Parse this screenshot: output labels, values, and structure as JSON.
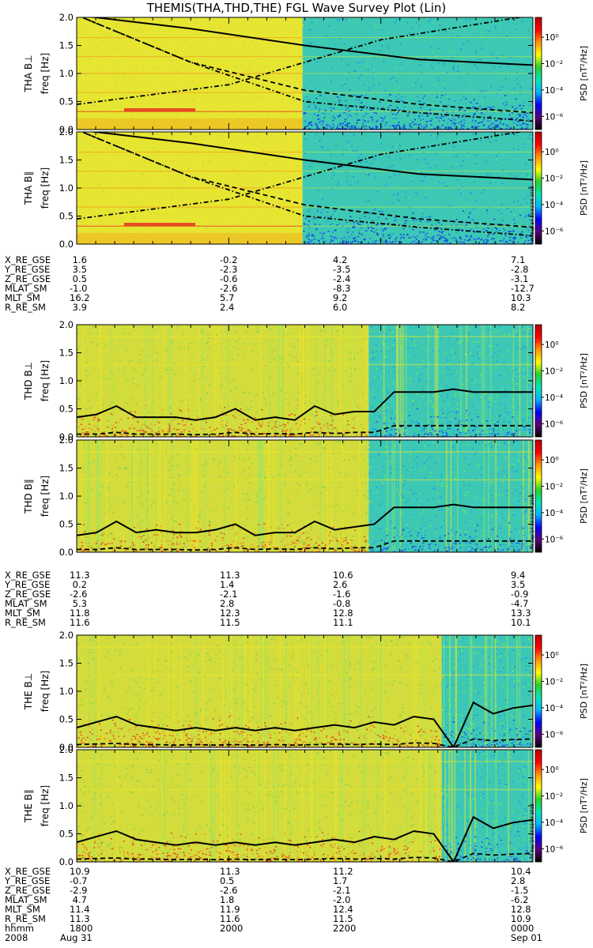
{
  "title": "THEMIS(THA,THD,THE) FGL Wave Survey Plot (Lin)",
  "colorbar": {
    "label": "PSD [nT²/Hz]",
    "ticks": [
      "10⁰",
      "10⁻²",
      "10⁻⁴",
      "10⁻⁶"
    ],
    "log_range": [
      -7,
      1.5
    ],
    "colors": [
      "#000000",
      "#5a007a",
      "#0000ff",
      "#00b4ff",
      "#00e6b4",
      "#28d228",
      "#ffff00",
      "#ff9600",
      "#ff0000",
      "#b40000"
    ]
  },
  "side_stamps": [
    "Fri Sep 14 13:52:55 2012",
    "Fri Sep 14 13:52:54 2012"
  ],
  "chart_data": [
    {
      "type": "heatmap",
      "id": "tha_bperp",
      "ylabel": "THA B⊥",
      "yunit": "freq [Hz]",
      "yticks": [
        "0.0",
        "0.5",
        "1.0",
        "1.5",
        "2.0"
      ],
      "ylim": [
        0,
        2.0
      ],
      "xlim": [
        "1700",
        "2300"
      ],
      "style": "quiet",
      "break_frac": 0.495,
      "overlay": [
        {
          "kind": "dashdot",
          "values": [
            0.45,
            0.8,
            1.6,
            2.3
          ]
        },
        {
          "kind": "dashdot",
          "values": [
            2.3,
            1.2,
            0.5,
            0.3,
            0.15
          ]
        },
        {
          "kind": "dashed",
          "values": [
            2.2,
            1.2,
            0.7,
            0.45,
            0.3
          ]
        },
        {
          "kind": "solid",
          "values": [
            2.2,
            1.8,
            1.5,
            1.25,
            1.15
          ]
        }
      ]
    },
    {
      "type": "heatmap",
      "id": "tha_bpar",
      "ylabel": "THA B∥",
      "yunit": "freq [Hz]",
      "yticks": [
        "0.0",
        "0.5",
        "1.0",
        "1.5",
        "2.0"
      ],
      "ylim": [
        0,
        2.0
      ],
      "xlim": [
        "1700",
        "2300"
      ],
      "style": "quiet",
      "break_frac": 0.495,
      "stamp": 0,
      "overlay": [
        {
          "kind": "dashdot",
          "values": [
            0.45,
            0.8,
            1.6,
            2.3
          ]
        },
        {
          "kind": "dashdot",
          "values": [
            2.3,
            1.2,
            0.5,
            0.3,
            0.15
          ]
        },
        {
          "kind": "dashed",
          "values": [
            2.2,
            1.2,
            0.7,
            0.45,
            0.3
          ]
        },
        {
          "kind": "solid",
          "values": [
            2.2,
            1.8,
            1.5,
            1.25,
            1.15
          ]
        }
      ]
    },
    {
      "type": "heatmap",
      "id": "thd_bperp",
      "ylabel": "THD B⊥",
      "yunit": "freq [Hz]",
      "yticks": [
        "0.0",
        "0.5",
        "1.0",
        "1.5",
        "2.0"
      ],
      "ylim": [
        0,
        2.0
      ],
      "xlim": [
        "1700",
        "2300"
      ],
      "style": "active",
      "break_frac": 0.64,
      "overlay": [
        {
          "kind": "solid",
          "values": [
            0.35,
            0.4,
            0.55,
            0.35,
            0.35,
            0.35,
            0.3,
            0.35,
            0.5,
            0.3,
            0.35,
            0.3,
            0.55,
            0.4,
            0.45,
            0.45,
            0.8,
            0.8,
            0.8,
            0.85,
            0.8,
            0.8,
            0.8,
            0.8
          ]
        },
        {
          "kind": "dashed",
          "values": [
            0.05,
            0.05,
            0.08,
            0.05,
            0.05,
            0.05,
            0.04,
            0.05,
            0.08,
            0.05,
            0.06,
            0.05,
            0.08,
            0.06,
            0.08,
            0.08,
            0.2,
            0.2,
            0.2,
            0.2,
            0.2,
            0.2,
            0.2,
            0.2
          ]
        }
      ]
    },
    {
      "type": "heatmap",
      "id": "thd_bpar",
      "ylabel": "THD B∥",
      "yunit": "freq [Hz]",
      "yticks": [
        "0.0",
        "0.5",
        "1.0",
        "1.5",
        "2.0"
      ],
      "ylim": [
        0,
        2.0
      ],
      "xlim": [
        "1700",
        "2300"
      ],
      "style": "active",
      "break_frac": 0.64,
      "stamp": 1,
      "overlay": [
        {
          "kind": "solid",
          "values": [
            0.3,
            0.35,
            0.55,
            0.35,
            0.4,
            0.35,
            0.35,
            0.4,
            0.5,
            0.3,
            0.35,
            0.35,
            0.55,
            0.4,
            0.45,
            0.5,
            0.8,
            0.8,
            0.8,
            0.85,
            0.8,
            0.8,
            0.8,
            0.8
          ]
        },
        {
          "kind": "dashed",
          "values": [
            0.05,
            0.05,
            0.08,
            0.05,
            0.05,
            0.05,
            0.04,
            0.05,
            0.08,
            0.05,
            0.06,
            0.05,
            0.08,
            0.06,
            0.08,
            0.08,
            0.2,
            0.2,
            0.2,
            0.2,
            0.2,
            0.2,
            0.2,
            0.2
          ]
        }
      ]
    },
    {
      "type": "heatmap",
      "id": "the_bperp",
      "ylabel": "THE B⊥",
      "yunit": "freq [Hz]",
      "yticks": [
        "0.0",
        "0.5",
        "1.0",
        "1.5",
        "2.0"
      ],
      "ylim": [
        0,
        2.0
      ],
      "xlim": [
        "1700",
        "2300"
      ],
      "style": "the",
      "break_frac": 0.8,
      "overlay": [
        {
          "kind": "solid",
          "values": [
            0.35,
            0.45,
            0.55,
            0.4,
            0.35,
            0.3,
            0.35,
            0.3,
            0.35,
            0.3,
            0.35,
            0.3,
            0.35,
            0.4,
            0.35,
            0.45,
            0.4,
            0.55,
            0.5,
            0.0,
            0.8,
            0.6,
            0.7,
            0.75
          ]
        },
        {
          "kind": "dashed",
          "values": [
            0.05,
            0.06,
            0.07,
            0.05,
            0.05,
            0.04,
            0.05,
            0.04,
            0.05,
            0.04,
            0.05,
            0.04,
            0.05,
            0.06,
            0.05,
            0.06,
            0.05,
            0.08,
            0.07,
            0.0,
            0.15,
            0.12,
            0.14,
            0.15
          ]
        }
      ]
    },
    {
      "type": "heatmap",
      "id": "the_bpar",
      "ylabel": "THE B∥",
      "yunit": "freq [Hz]",
      "yticks": [
        "0.0",
        "0.5",
        "1.0",
        "1.5",
        "2.0"
      ],
      "ylim": [
        0,
        2.0
      ],
      "xlim": [
        "1700",
        "2300"
      ],
      "style": "the",
      "break_frac": 0.8,
      "stamp": 1,
      "overlay": [
        {
          "kind": "solid",
          "values": [
            0.35,
            0.45,
            0.55,
            0.4,
            0.35,
            0.3,
            0.35,
            0.3,
            0.35,
            0.3,
            0.35,
            0.3,
            0.35,
            0.4,
            0.35,
            0.45,
            0.4,
            0.55,
            0.5,
            0.0,
            0.8,
            0.6,
            0.7,
            0.75
          ]
        },
        {
          "kind": "dashed",
          "values": [
            0.05,
            0.06,
            0.07,
            0.05,
            0.05,
            0.04,
            0.05,
            0.04,
            0.05,
            0.04,
            0.05,
            0.04,
            0.05,
            0.06,
            0.05,
            0.06,
            0.05,
            0.08,
            0.07,
            0.0,
            0.15,
            0.12,
            0.14,
            0.15
          ]
        }
      ]
    }
  ],
  "ephemeris": [
    {
      "rows": [
        [
          "X_RE_GSE",
          " 1.6",
          "-0.2",
          "4.2",
          "7.1"
        ],
        [
          "Y_RE_GSE",
          " 3.5",
          "-2.3",
          "-3.5",
          "-2.8"
        ],
        [
          "Z_RE_GSE",
          " 0.5",
          "-0.6",
          "-2.4",
          "-3.1"
        ],
        [
          "MLAT_SM",
          "-1.0",
          "-2.6",
          "-8.3",
          "-12.7"
        ],
        [
          "MLT_SM",
          "16.2",
          "5.7",
          "9.2",
          "10.3"
        ],
        [
          "R_RE_SM",
          " 3.9",
          "2.4",
          "6.0",
          "8.2"
        ]
      ]
    },
    {
      "rows": [
        [
          "X_RE_GSE",
          "11.3",
          "11.3",
          "10.6",
          "9.4"
        ],
        [
          "Y_RE_GSE",
          " 0.2",
          "1.4",
          "2.6",
          "3.5"
        ],
        [
          "Z_RE_GSE",
          "-2.6",
          "-2.1",
          "-1.6",
          "-0.9"
        ],
        [
          "MLAT_SM",
          " 5.3",
          "2.8",
          "-0.8",
          "-4.7"
        ],
        [
          "MLT_SM",
          "11.8",
          "12.3",
          "12.8",
          "13.3"
        ],
        [
          "R_RE_SM",
          "11.6",
          "11.5",
          "11.1",
          "10.1"
        ]
      ]
    },
    {
      "rows": [
        [
          "X_RE_GSE",
          "10.9",
          "11.3",
          "11.2",
          "10.4"
        ],
        [
          "Y_RE_GSE",
          "-0.7",
          "0.5",
          "1.7",
          "2.8"
        ],
        [
          "Z_RE_GSE",
          "-2.9",
          "-2.6",
          "-2.1",
          "-1.5"
        ],
        [
          "MLAT_SM",
          " 4.7",
          "1.8",
          "-2.0",
          "-6.2"
        ],
        [
          "MLT_SM",
          "11.4",
          "11.9",
          "12.4",
          "12.8"
        ],
        [
          "R_RE_SM",
          "11.3",
          "11.6",
          "11.5",
          "10.9"
        ],
        [
          "hhmm",
          "1800",
          "2000",
          "2200",
          "0000"
        ],
        [
          "2008",
          "Aug 31",
          "",
          "",
          "Sep 01"
        ]
      ]
    }
  ]
}
